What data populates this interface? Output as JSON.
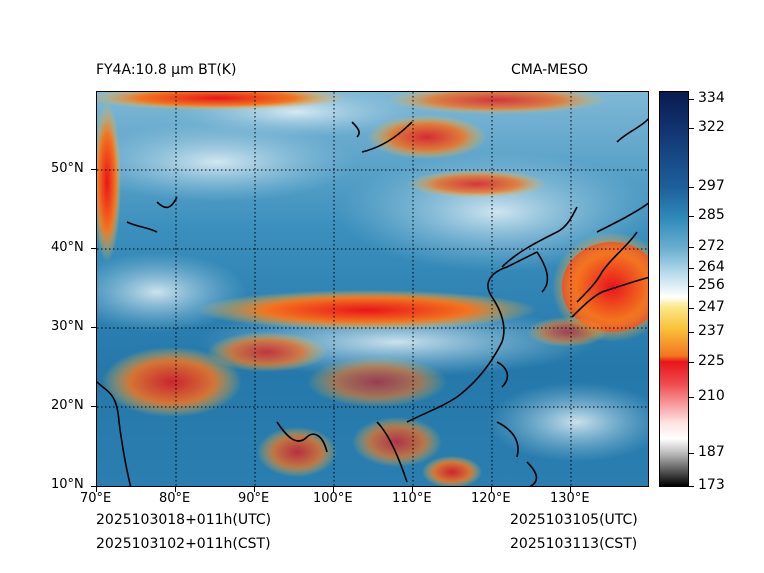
{
  "header": {
    "title_left": "FY4A:10.8 µm BT(K)",
    "title_right": "CMA-MESO"
  },
  "axes": {
    "lon_labels": [
      "70°E",
      "80°E",
      "90°E",
      "100°E",
      "110°E",
      "120°E",
      "130°E"
    ],
    "lat_labels": [
      "50°N",
      "40°N",
      "30°N",
      "20°N",
      "10°N"
    ]
  },
  "colorbar": {
    "min": 173,
    "max": 334,
    "ticks": [
      "334",
      "322",
      "297",
      "285",
      "272",
      "264",
      "256",
      "247",
      "237",
      "225",
      "210",
      "187",
      "173"
    ],
    "tick_values": [
      334,
      322,
      297,
      285,
      272,
      264,
      256,
      247,
      237,
      225,
      210,
      187,
      173
    ],
    "colors": {
      "cold_black": "#000000",
      "gray": "#9a9a9a",
      "red": "#e8151b",
      "orange": "#f59a1e",
      "yellow": "#f8d23a",
      "white": "#ffffff",
      "light_blue": "#a8d3e6",
      "mid_blue": "#2f8ab9",
      "dark_blue": "#0e3c7a",
      "navy": "#0a1a4f"
    }
  },
  "footer": {
    "init_utc": "2025103018+011h(UTC)",
    "init_cst": "2025103102+011h(CST)",
    "valid_utc": "2025103105(UTC)",
    "valid_cst": "2025103113(CST)"
  }
}
